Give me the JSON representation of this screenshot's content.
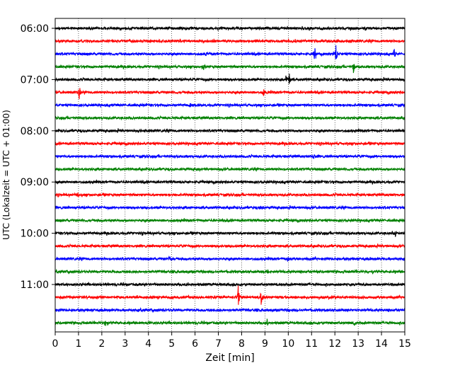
{
  "chart_data": {
    "type": "line",
    "xlabel": "Zeit  [min]",
    "ylabel": "UTC (Lokalzeit = UTC + 01:00)",
    "x_ticks": [
      "0",
      "1",
      "2",
      "3",
      "4",
      "5",
      "6",
      "7",
      "8",
      "9",
      "10",
      "11",
      "12",
      "13",
      "14",
      "15"
    ],
    "xlim": [
      0,
      15
    ],
    "y_tick_labels": [
      "06:00",
      "07:00",
      "08:00",
      "09:00",
      "10:00",
      "11:00"
    ],
    "grid": "vertical dotted at each minute",
    "colors": [
      "#000000",
      "#ff0000",
      "#0000ff",
      "#008000"
    ],
    "traces": [
      {
        "start": "06:00",
        "color": "#000000",
        "events": []
      },
      {
        "start": "06:15",
        "color": "#ff0000",
        "events": []
      },
      {
        "start": "06:30",
        "color": "#0000ff",
        "events": [
          {
            "t": 11.15,
            "amp": 16
          },
          {
            "t": 12.05,
            "amp": 20
          },
          {
            "t": 14.55,
            "amp": 10
          },
          {
            "t": 6.5,
            "amp": 4
          }
        ]
      },
      {
        "start": "06:45",
        "color": "#008000",
        "events": [
          {
            "t": 6.35,
            "amp": 10
          },
          {
            "t": 12.8,
            "amp": 9
          }
        ]
      },
      {
        "start": "07:00",
        "color": "#000000",
        "events": [
          {
            "t": 10.05,
            "amp": 10
          },
          {
            "t": 9.9,
            "amp": 6
          }
        ]
      },
      {
        "start": "07:15",
        "color": "#ff0000",
        "events": [
          {
            "t": 1.05,
            "amp": 14
          },
          {
            "t": 8.95,
            "amp": 6
          }
        ]
      },
      {
        "start": "07:30",
        "color": "#0000ff",
        "events": [
          {
            "t": 5.8,
            "amp": 4
          }
        ]
      },
      {
        "start": "07:45",
        "color": "#008000",
        "events": []
      },
      {
        "start": "08:00",
        "color": "#000000",
        "events": [
          {
            "t": 3.9,
            "amp": 4
          }
        ]
      },
      {
        "start": "08:15",
        "color": "#ff0000",
        "events": []
      },
      {
        "start": "08:30",
        "color": "#0000ff",
        "events": [
          {
            "t": 11.1,
            "amp": 4
          }
        ]
      },
      {
        "start": "08:45",
        "color": "#008000",
        "events": [
          {
            "t": 6.2,
            "amp": 4
          }
        ]
      },
      {
        "start": "09:00",
        "color": "#000000",
        "events": []
      },
      {
        "start": "09:15",
        "color": "#ff0000",
        "events": [
          {
            "t": 1.0,
            "amp": 4
          }
        ]
      },
      {
        "start": "09:30",
        "color": "#0000ff",
        "events": [
          {
            "t": 8.9,
            "amp": 5
          }
        ]
      },
      {
        "start": "09:45",
        "color": "#008000",
        "events": [
          {
            "t": 7.2,
            "amp": 4
          }
        ]
      },
      {
        "start": "10:00",
        "color": "#000000",
        "events": [
          {
            "t": 14.6,
            "amp": 4
          }
        ]
      },
      {
        "start": "10:15",
        "color": "#ff0000",
        "events": []
      },
      {
        "start": "10:30",
        "color": "#0000ff",
        "events": [
          {
            "t": 4.9,
            "amp": 6
          },
          {
            "t": 10.0,
            "amp": 5
          }
        ]
      },
      {
        "start": "10:45",
        "color": "#008000",
        "events": [
          {
            "t": 9.1,
            "amp": 4
          }
        ]
      },
      {
        "start": "11:00",
        "color": "#000000",
        "events": []
      },
      {
        "start": "11:15",
        "color": "#ff0000",
        "events": [
          {
            "t": 7.85,
            "amp": 18
          },
          {
            "t": 8.85,
            "amp": 16
          }
        ]
      },
      {
        "start": "11:30",
        "color": "#0000ff",
        "events": []
      },
      {
        "start": "11:45",
        "color": "#008000",
        "events": [
          {
            "t": 2.15,
            "amp": 8
          },
          {
            "t": 4.05,
            "amp": 6
          },
          {
            "t": 9.1,
            "amp": 6
          },
          {
            "t": 12.85,
            "amp": 6
          }
        ]
      }
    ]
  }
}
